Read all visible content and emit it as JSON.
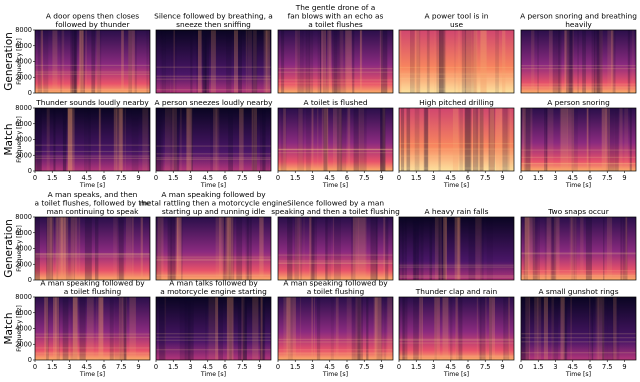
{
  "axes": {
    "ylabel": "Frequency [Hz]",
    "xlabel": "Time [s]",
    "ylim": [
      0,
      8000
    ],
    "yticks": [
      0,
      2000,
      4000,
      6000,
      8000
    ],
    "xlim": [
      0,
      10
    ],
    "xticks": [
      0,
      1.5,
      3,
      4.5,
      6,
      7.5,
      9
    ]
  },
  "groups": [
    {
      "rows": [
        {
          "label": "Generation",
          "panels": [
            {
              "title": [
                "A door opens then closes",
                "followed by thunder"
              ]
            },
            {
              "title": [
                "Silence followed by breathing, a",
                "sneeze then sniffing"
              ]
            },
            {
              "title": [
                "The gentle drone of a",
                "fan blows with an echo as",
                "a toilet flushes"
              ]
            },
            {
              "title": [
                "A power tool is in",
                "use"
              ]
            },
            {
              "title": [
                "A person snoring and breathing",
                "heavily"
              ]
            }
          ]
        },
        {
          "label": "Match",
          "panels": [
            {
              "title": [
                "Thunder sounds loudly nearby"
              ]
            },
            {
              "title": [
                "A person sneezes loudly nearby"
              ]
            },
            {
              "title": [
                "A toilet is flushed"
              ]
            },
            {
              "title": [
                "High pitched drilling"
              ]
            },
            {
              "title": [
                "A person snoring"
              ]
            }
          ]
        }
      ]
    },
    {
      "rows": [
        {
          "label": "Generation",
          "panels": [
            {
              "title": [
                "A man speaks, and then",
                "a toilet flushes, followed by the",
                "man continuing to speak"
              ]
            },
            {
              "title": [
                "A man speaking followed by",
                "metal rattling then a motorcycle engine",
                "starting up and running idle"
              ]
            },
            {
              "title": [
                "Silence followed by a man",
                "speaking and then a toilet flushing"
              ]
            },
            {
              "title": [
                "A heavy rain falls"
              ]
            },
            {
              "title": [
                "Two snaps occur"
              ]
            }
          ]
        },
        {
          "label": "Match",
          "panels": [
            {
              "title": [
                "A man speaking followed by",
                "a toilet flushing"
              ]
            },
            {
              "title": [
                "A man talks followed by",
                "a motorcycle engine starting"
              ]
            },
            {
              "title": [
                "A man speaking followed by",
                "a toilet flushing"
              ]
            },
            {
              "title": [
                "Thunder clap and rain"
              ]
            },
            {
              "title": [
                "A small gunshot rings"
              ]
            }
          ]
        }
      ]
    }
  ]
}
